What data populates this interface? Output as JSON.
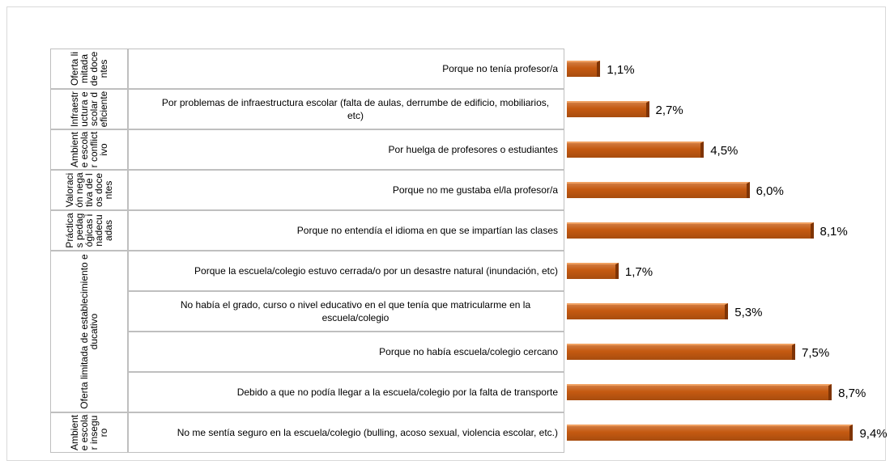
{
  "chart_data": {
    "type": "bar",
    "orientation": "horizontal",
    "color": "#c55a11",
    "xlim": [
      0,
      10
    ],
    "groups": [
      {
        "label": "Oferta limitada de docentes",
        "size": 1
      },
      {
        "label": "Infraestructura escolar deficiente",
        "size": 1
      },
      {
        "label": "Ambiente escolar conflictivo",
        "size": 1
      },
      {
        "label": "Valoración negativa de los docentes",
        "size": 1
      },
      {
        "label": "Prácticas pedagógicas inadecuadas",
        "size": 1
      },
      {
        "label": "Oferta limitada de establecimiento educativo",
        "size": 4
      },
      {
        "label": "Ambiente escolar inseguro",
        "size": 1
      }
    ],
    "categories": [
      "Porque no tenía profesor/a",
      "Por problemas de infraestructura escolar (falta de aulas, derrumbe de edificio, mobiliarios, etc)",
      "Por huelga de profesores o estudiantes",
      "Porque no me gustaba el/la profesor/a",
      "Porque no entendía el idioma en que se impartían las clases",
      "Porque la escuela/colegio estuvo cerrada/o por un desastre natural (inundación, etc)",
      "No había el grado, curso o nivel educativo en el que tenía que matricularme en la escuela/colegio",
      "Porque no había escuela/colegio cercano",
      "Debido a que no podía llegar a la escuela/colegio por la falta de transporte",
      "No me sentía seguro en la escuela/colegio (bulling, acoso sexual, violencia escolar, etc.)"
    ],
    "values": [
      1.1,
      2.7,
      4.5,
      6.0,
      8.1,
      1.7,
      5.3,
      7.5,
      8.7,
      9.4
    ],
    "value_labels": [
      "1,1%",
      "2,7%",
      "4,5%",
      "6,0%",
      "8,1%",
      "1,7%",
      "5,3%",
      "7,5%",
      "8,7%",
      "9,4%"
    ]
  }
}
